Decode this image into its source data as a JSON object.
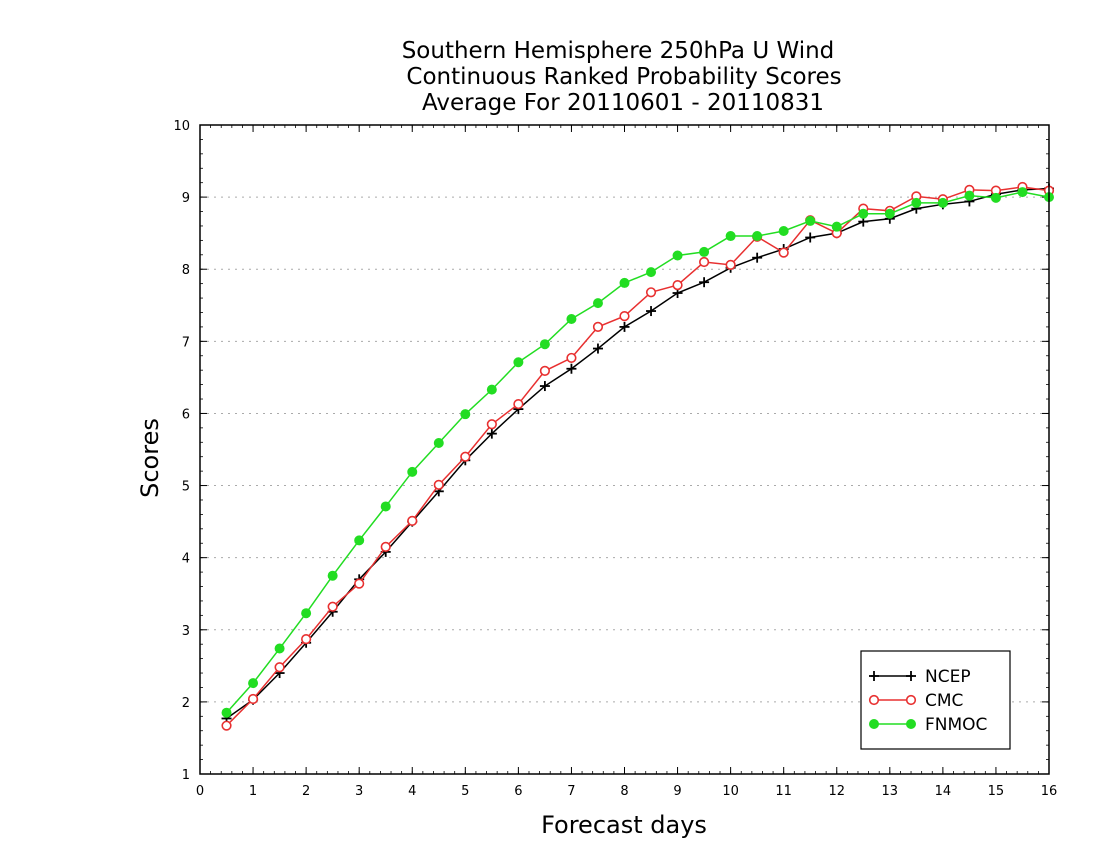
{
  "chart_data": {
    "type": "line",
    "title": [
      "Southern Hemisphere 250hPa U Wind",
      "Continuous Ranked Probability Scores",
      "Average For 20110601 - 20110831"
    ],
    "xlabel": "Forecast days",
    "ylabel": "Scores",
    "xlim": [
      0,
      16
    ],
    "ylim": [
      1,
      10
    ],
    "xticks": [
      "0",
      "1",
      "2",
      "3",
      "4",
      "5",
      "6",
      "7",
      "8",
      "9",
      "10",
      "11",
      "12",
      "13",
      "14",
      "15",
      "16"
    ],
    "yticks": [
      "1",
      "2",
      "3",
      "4",
      "5",
      "6",
      "7",
      "8",
      "9",
      "10"
    ],
    "grid": "horizontal dotted",
    "legend_position": "bottom-right",
    "x": [
      0.5,
      1.0,
      1.5,
      2.0,
      2.5,
      3.0,
      3.5,
      4.0,
      4.5,
      5.0,
      5.5,
      6.0,
      6.5,
      7.0,
      7.5,
      8.0,
      8.5,
      9.0,
      9.5,
      10.0,
      10.5,
      11.0,
      11.5,
      12.0,
      12.5,
      13.0,
      13.5,
      14.0,
      14.5,
      15.0,
      15.5,
      16.0
    ],
    "series": [
      {
        "name": "NCEP",
        "color": "#000000",
        "marker": "plus",
        "values": [
          1.77,
          2.03,
          2.4,
          2.82,
          3.25,
          3.7,
          4.08,
          4.5,
          4.92,
          5.35,
          5.72,
          6.06,
          6.38,
          6.62,
          6.9,
          7.2,
          7.42,
          7.67,
          7.82,
          8.02,
          8.16,
          8.28,
          8.44,
          8.5,
          8.66,
          8.7,
          8.84,
          8.9,
          8.94,
          9.04,
          9.1,
          9.12
        ]
      },
      {
        "name": "CMC",
        "color": "#e83030",
        "marker": "open-circle",
        "values": [
          1.67,
          2.04,
          2.48,
          2.87,
          3.32,
          3.64,
          4.15,
          4.51,
          5.01,
          5.4,
          5.85,
          6.13,
          6.59,
          6.77,
          7.2,
          7.35,
          7.68,
          7.78,
          8.1,
          8.06,
          8.45,
          8.23,
          8.68,
          8.5,
          8.84,
          8.81,
          9.01,
          8.97,
          9.1,
          9.09,
          9.14,
          9.09
        ]
      },
      {
        "name": "FNMOC",
        "color": "#22dd22",
        "marker": "filled-circle",
        "values": [
          1.85,
          2.26,
          2.74,
          3.23,
          3.75,
          4.24,
          4.71,
          5.19,
          5.59,
          5.99,
          6.33,
          6.71,
          6.96,
          7.31,
          7.53,
          7.81,
          7.96,
          8.19,
          8.24,
          8.46,
          8.46,
          8.53,
          8.67,
          8.59,
          8.77,
          8.77,
          8.92,
          8.92,
          9.02,
          8.99,
          9.07,
          9.0
        ]
      }
    ]
  }
}
